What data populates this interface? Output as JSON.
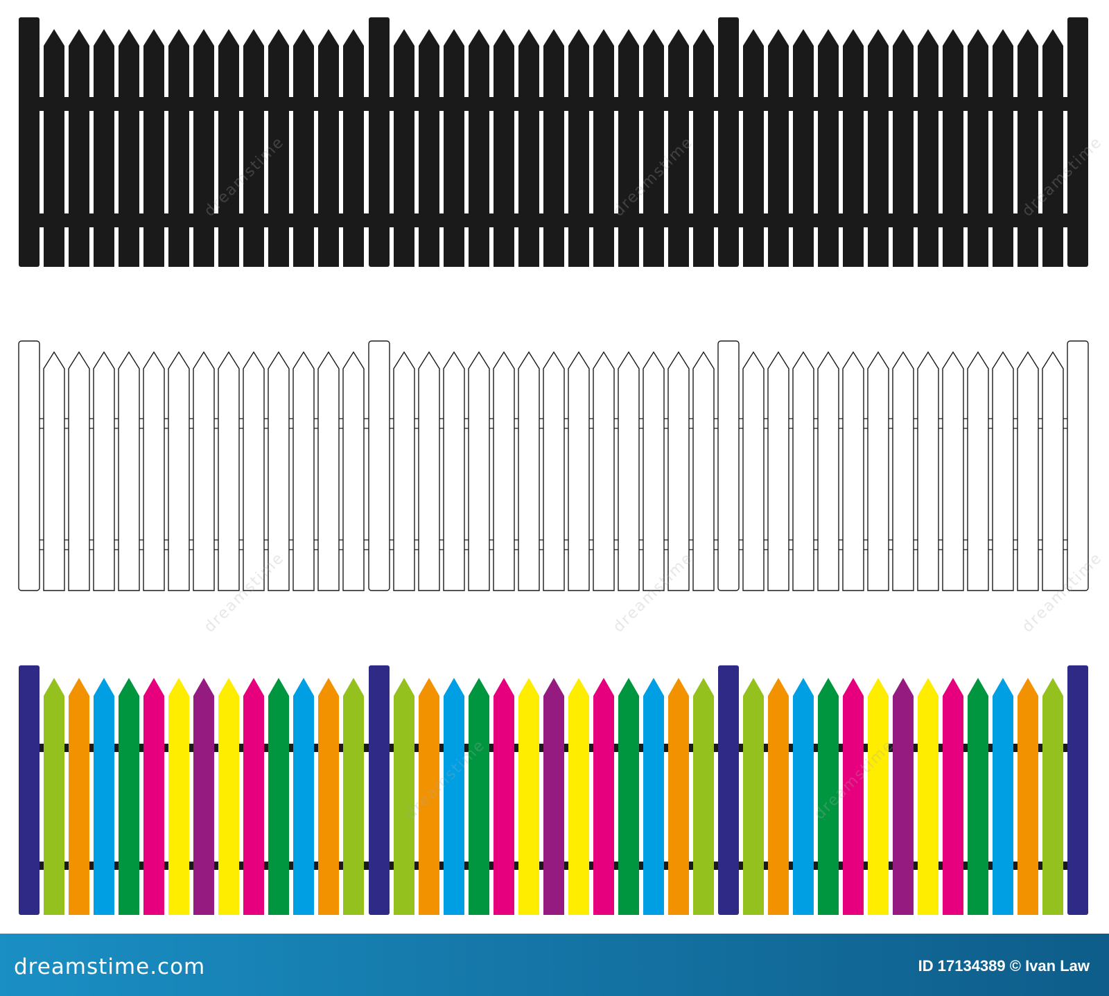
{
  "footer": {
    "logo_text": "dreamstime.com",
    "id_text": "ID 17134389 © Ivan Law"
  },
  "watermark": {
    "text": "dreamstime"
  },
  "colors": {
    "black_fence": "#1a1a1a",
    "outline_stroke": "#1a1a1a",
    "post": "#2e2a86",
    "rail": "#1a1a1a",
    "picket_cycle": [
      "#95c11f",
      "#f39200",
      "#009fe3",
      "#009640",
      "#e6007e",
      "#ffed00",
      "#951b81",
      "#ffed00",
      "#e6007e",
      "#009640",
      "#009fe3",
      "#f39200",
      "#95c11f"
    ]
  },
  "fences": [
    {
      "style": "solid-black"
    },
    {
      "style": "outline"
    },
    {
      "style": "colored"
    }
  ]
}
